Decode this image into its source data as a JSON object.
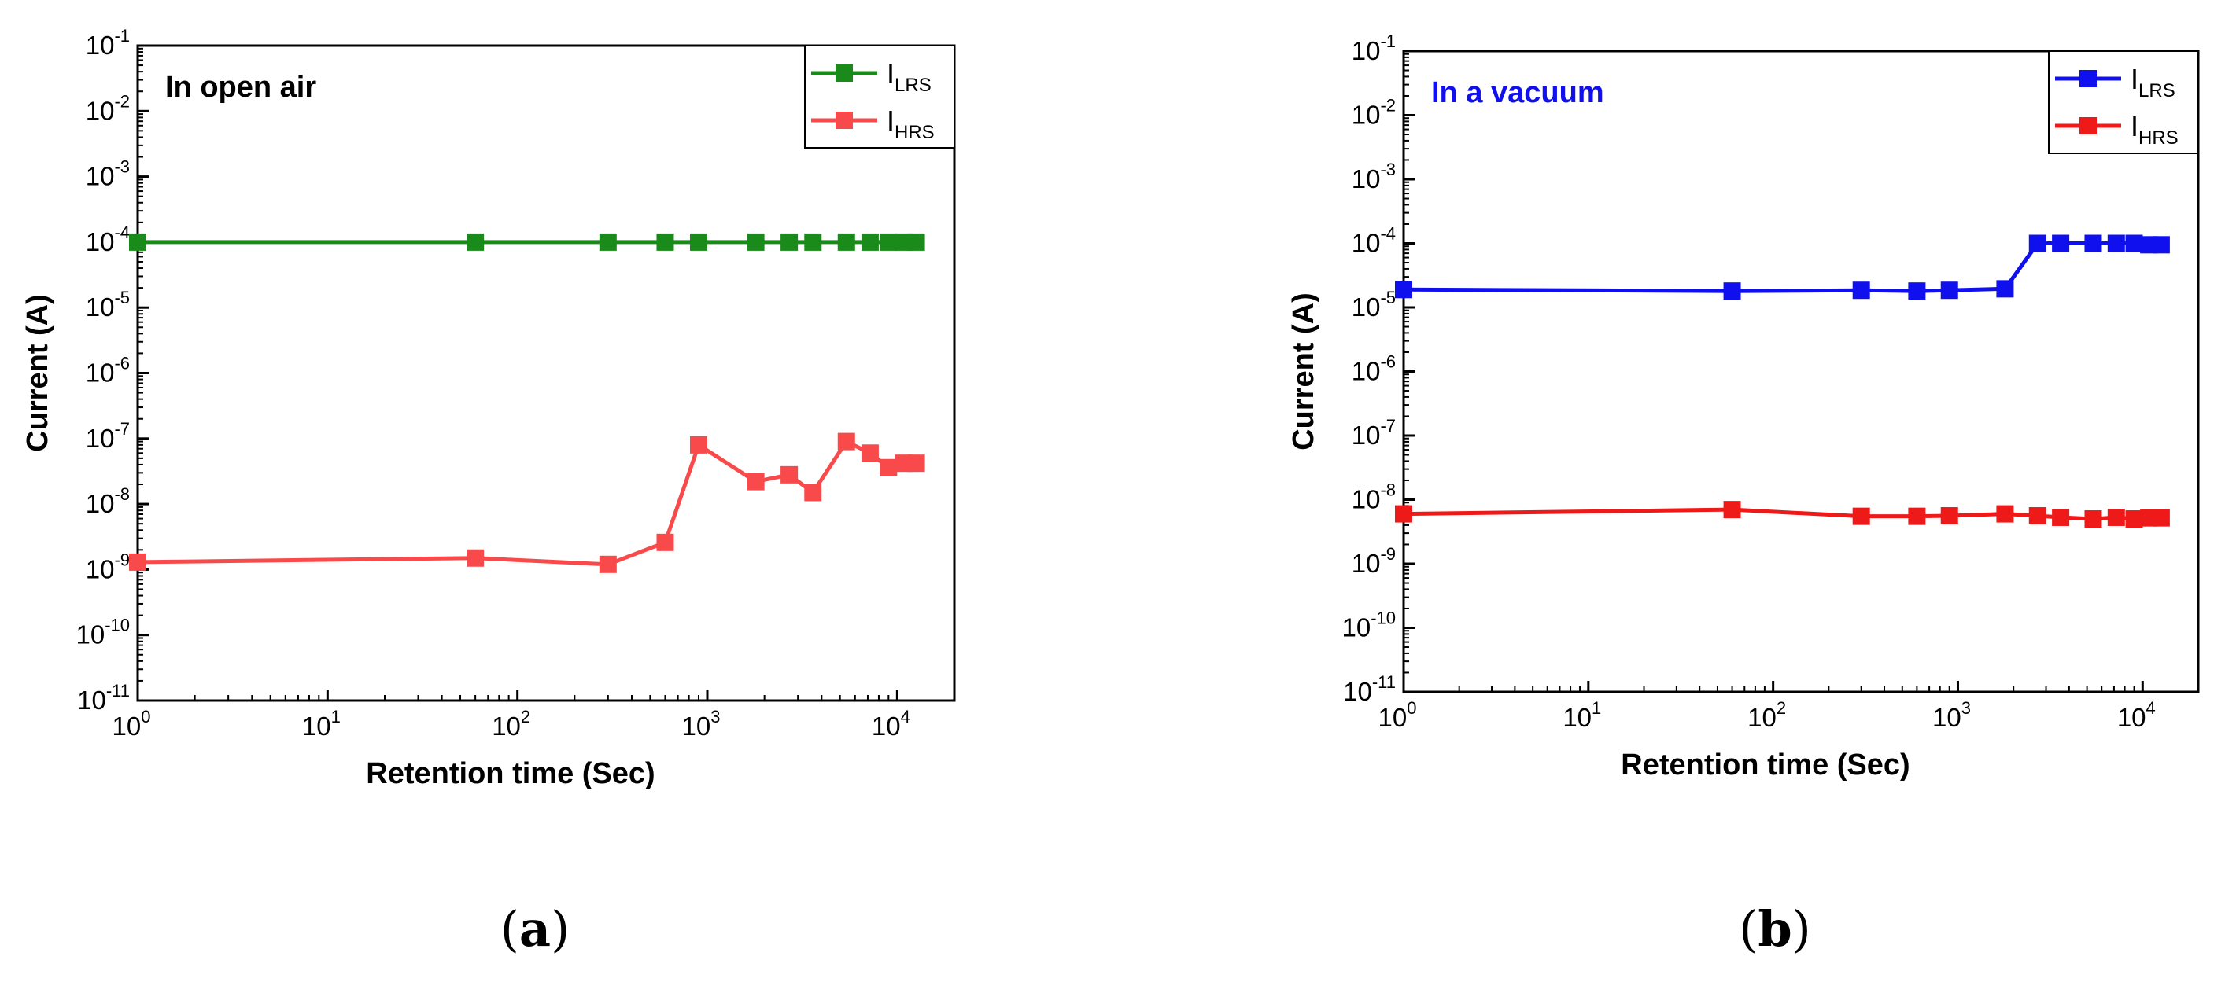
{
  "chart_data": [
    {
      "type": "line",
      "panel_label": "a",
      "annotation": "In open air",
      "annotation_color": "#000000",
      "xlabel": "Retention time (Sec)",
      "ylabel": "Current (A)",
      "xscale": "log",
      "yscale": "log",
      "xlim": [
        1,
        20000
      ],
      "ylim": [
        1e-11,
        0.1
      ],
      "x_ticks": [
        1,
        10,
        100,
        1000,
        10000
      ],
      "x_tick_exponents": [
        "0",
        "1",
        "2",
        "3",
        "4"
      ],
      "y_ticks": [
        1e-11,
        1e-10,
        1e-09,
        1e-08,
        1e-07,
        1e-06,
        1e-05,
        0.0001,
        0.001,
        0.01,
        0.1
      ],
      "y_tick_exponents": [
        "-11",
        "-10",
        "-9",
        "-8",
        "-7",
        "-6",
        "-5",
        "-4",
        "-3",
        "-2",
        "-1"
      ],
      "tick_base": "10",
      "grid": false,
      "legend_position": "top-right",
      "series": [
        {
          "name_main": "I",
          "name_sub": "LRS",
          "color": "#1a8a1a",
          "x": [
            1,
            60,
            300,
            600,
            900,
            1800,
            2700,
            3600,
            5400,
            7200,
            9000,
            10800,
            12600
          ],
          "y": [
            0.0001,
            0.0001,
            0.0001,
            0.0001,
            0.0001,
            0.0001,
            0.0001,
            0.0001,
            0.0001,
            0.0001,
            0.0001,
            0.0001,
            0.0001
          ]
        },
        {
          "name_main": "I",
          "name_sub": "HRS",
          "color": "#f84a4a",
          "x": [
            1,
            60,
            300,
            600,
            900,
            1800,
            2700,
            3600,
            5400,
            7200,
            9000,
            10800,
            12600
          ],
          "y": [
            1.3e-09,
            1.5e-09,
            1.2e-09,
            2.6e-09,
            8e-08,
            2.2e-08,
            2.8e-08,
            1.5e-08,
            9e-08,
            6e-08,
            3.6e-08,
            4.2e-08,
            4.2e-08
          ]
        }
      ]
    },
    {
      "type": "line",
      "panel_label": "b",
      "annotation": "In a vacuum",
      "annotation_color": "#1010ee",
      "xlabel": "Retention time (Sec)",
      "ylabel": "Current (A)",
      "xscale": "log",
      "yscale": "log",
      "xlim": [
        1,
        20000
      ],
      "ylim": [
        1e-11,
        0.1
      ],
      "x_ticks": [
        1,
        10,
        100,
        1000,
        10000
      ],
      "x_tick_exponents": [
        "0",
        "1",
        "2",
        "3",
        "4"
      ],
      "y_ticks": [
        1e-11,
        1e-10,
        1e-09,
        1e-08,
        1e-07,
        1e-06,
        1e-05,
        0.0001,
        0.001,
        0.01,
        0.1
      ],
      "y_tick_exponents": [
        "-11",
        "-10",
        "-9",
        "-8",
        "-7",
        "-6",
        "-5",
        "-4",
        "-3",
        "-2",
        "-1"
      ],
      "tick_base": "10",
      "grid": false,
      "legend_position": "top-right",
      "series": [
        {
          "name_main": "I",
          "name_sub": "LRS",
          "color": "#1010ee",
          "x": [
            1,
            60,
            300,
            600,
            900,
            1800,
            2700,
            3600,
            5400,
            7200,
            9000,
            10800,
            12600
          ],
          "y": [
            1.9e-05,
            1.8e-05,
            1.85e-05,
            1.8e-05,
            1.85e-05,
            1.95e-05,
            0.0001,
            0.0001,
            0.0001,
            0.0001,
            0.0001,
            9.5e-05,
            9.5e-05
          ]
        },
        {
          "name_main": "I",
          "name_sub": "HRS",
          "color": "#ee1a1a",
          "x": [
            1,
            60,
            300,
            600,
            900,
            1800,
            2700,
            3600,
            5400,
            7200,
            9000,
            10800,
            12600
          ],
          "y": [
            6e-09,
            7e-09,
            5.5e-09,
            5.5e-09,
            5.6e-09,
            6e-09,
            5.6e-09,
            5.3e-09,
            5e-09,
            5.3e-09,
            5e-09,
            5.2e-09,
            5.2e-09
          ]
        }
      ]
    }
  ]
}
